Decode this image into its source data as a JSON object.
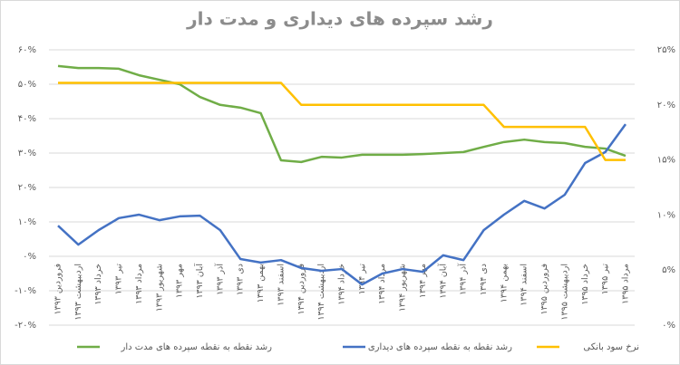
{
  "chart_data": {
    "type": "line",
    "title": "رشد سپرده های دیداری و مدت دار",
    "categories": [
      "فروردین ۱۳۹۳",
      "اردیبهشت ۱۳۹۳",
      "خرداد ۱۳۹۳",
      "تیر ۱۳۹۳",
      "مرداد ۱۳۹۳",
      "شهریور ۱۳۹۳",
      "مهر ۱۳۹۳",
      "آبان ۱۳۹۳",
      "آذر ۱۳۹۳",
      "دی ۱۳۹۳",
      "بهمن ۱۳۹۳",
      "اسفند ۱۳۹۳",
      "فروردین ۱۳۹۴",
      "اردیبهشت ۱۳۹۴",
      "خرداد ۱۳۹۴",
      "تیر ۱۳۹۴",
      "مرداد ۱۳۹۴",
      "شهریور ۱۳۹۴",
      "مهر ۱۳۹۴",
      "آبان ۱۳۹۴",
      "آذر ۱۳۹۴",
      "دی ۱۳۹۴",
      "بهمن ۱۳۹۴",
      "اسفند ۱۳۹۴",
      "فروردین ۱۳۹۵",
      "اردیبهشت ۱۳۹۵",
      "خرداد ۱۳۹۵",
      "تیر ۱۳۹۵",
      "مرداد ۱۳۹۵"
    ],
    "series": [
      {
        "name": "رشد نقطه به نقطه سپرده های مدت دار",
        "color": "#70ad47",
        "values": [
          55.3,
          54.7,
          54.7,
          54.5,
          52.6,
          51.3,
          50,
          46.3,
          44,
          43.2,
          41.6,
          27.9,
          27.4,
          28.9,
          28.7,
          29.5,
          29.5,
          29.5,
          29.7,
          30,
          30.3,
          31.8,
          33.2,
          33.9,
          33.2,
          32.9,
          31.8,
          31.3,
          29.2
        ]
      },
      {
        "name": "رشد نقطه به نقطه سپرده های دیداری",
        "color": "#4472c4",
        "values": [
          8.9,
          3.4,
          7.6,
          11.1,
          12.1,
          10.5,
          11.6,
          11.8,
          7.6,
          -0.8,
          -1.8,
          -1.1,
          -3.4,
          -4.2,
          -3.7,
          -8.2,
          -5,
          -3.7,
          -4.5,
          0.3,
          -1.1,
          7.6,
          12.1,
          16.1,
          13.9,
          17.9,
          27.1,
          30.3,
          38.4
        ]
      },
      {
        "name": "نرخ سود بانکی",
        "color": "#ffc000",
        "axis": "y2",
        "values": [
          22,
          22,
          22,
          22,
          22,
          22,
          22,
          22,
          22,
          22,
          22,
          22,
          20,
          20,
          20,
          20,
          20,
          20,
          20,
          20,
          20,
          20,
          18,
          18,
          18,
          18,
          18,
          15,
          15
        ]
      }
    ],
    "ylim": [
      -20,
      60
    ],
    "yticks": [
      {
        "value": -20,
        "label": "-۲۰%"
      },
      {
        "value": -10,
        "label": "-۱۰%"
      },
      {
        "value": 0,
        "label": "۰%"
      },
      {
        "value": 10,
        "label": "۱۰%"
      },
      {
        "value": 20,
        "label": "۲۰%"
      },
      {
        "value": 30,
        "label": "۳۰%"
      },
      {
        "value": 40,
        "label": "۴۰%"
      },
      {
        "value": 50,
        "label": "۵۰%"
      },
      {
        "value": 60,
        "label": "۶۰%"
      }
    ],
    "y2lim": [
      0,
      25
    ],
    "y2ticks": [
      {
        "value": 0,
        "label": "۰%"
      },
      {
        "value": 5,
        "label": "۵%"
      },
      {
        "value": 10,
        "label": "۱۰%"
      },
      {
        "value": 15,
        "label": "۱۵%"
      },
      {
        "value": 20,
        "label": "۲۰%"
      },
      {
        "value": 25,
        "label": "۲۵%"
      }
    ],
    "grid": true,
    "legend": "bottom"
  }
}
